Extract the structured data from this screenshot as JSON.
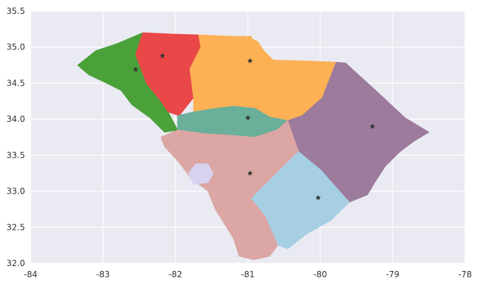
{
  "chart_data": {
    "type": "map",
    "title": "",
    "xlabel": "",
    "ylabel": "",
    "xlim": [
      -84,
      -78
    ],
    "ylim": [
      32.0,
      35.5
    ],
    "xticks": [
      -84,
      -83,
      -82,
      -81,
      -80,
      -79,
      -78
    ],
    "yticks": [
      32.0,
      32.5,
      33.0,
      33.5,
      34.0,
      34.5,
      35.0,
      35.5
    ],
    "xtick_labels": [
      "-84",
      "-83",
      "-82",
      "-81",
      "-80",
      "-79",
      "-78"
    ],
    "ytick_labels": [
      "32.0",
      "32.5",
      "33.0",
      "33.5",
      "34.0",
      "34.5",
      "35.0",
      "35.5"
    ],
    "grid": true,
    "background": "#eaeaf2",
    "marker_color": "#333333",
    "regions": [
      {
        "color": "#4aa13a",
        "outline": [
          [
            -83.35,
            34.75
          ],
          [
            -83.1,
            34.95
          ],
          [
            -82.8,
            35.05
          ],
          [
            -82.45,
            35.2
          ],
          [
            -82.55,
            34.9
          ],
          [
            -82.4,
            34.5
          ],
          [
            -82.2,
            34.25
          ],
          [
            -82.1,
            34.1
          ],
          [
            -81.97,
            33.85
          ],
          [
            -82.15,
            33.82
          ],
          [
            -82.35,
            34.02
          ],
          [
            -82.6,
            34.2
          ],
          [
            -82.75,
            34.4
          ],
          [
            -82.95,
            34.5
          ],
          [
            -83.2,
            34.62
          ]
        ],
        "centroid": [
          -82.55,
          34.69
        ]
      },
      {
        "color": "#e94748",
        "outline": [
          [
            -82.45,
            35.2
          ],
          [
            -82.0,
            35.18
          ],
          [
            -81.68,
            35.17
          ],
          [
            -81.65,
            35.0
          ],
          [
            -81.8,
            34.7
          ],
          [
            -81.75,
            34.3
          ],
          [
            -81.95,
            34.05
          ],
          [
            -82.1,
            34.1
          ],
          [
            -82.2,
            34.25
          ],
          [
            -82.4,
            34.5
          ],
          [
            -82.55,
            34.9
          ]
        ],
        "centroid": [
          -82.18,
          34.88
        ]
      },
      {
        "color": "#feb055",
        "outline": [
          [
            -81.68,
            35.17
          ],
          [
            -81.2,
            35.15
          ],
          [
            -80.95,
            35.15
          ],
          [
            -80.95,
            35.12
          ],
          [
            -80.87,
            35.08
          ],
          [
            -80.78,
            34.95
          ],
          [
            -80.65,
            34.82
          ],
          [
            -80.0,
            34.8
          ],
          [
            -79.78,
            34.79
          ],
          [
            -79.97,
            34.3
          ],
          [
            -80.25,
            34.05
          ],
          [
            -80.45,
            33.98
          ],
          [
            -80.7,
            34.03
          ],
          [
            -80.9,
            34.15
          ],
          [
            -81.2,
            34.18
          ],
          [
            -81.45,
            34.15
          ],
          [
            -81.75,
            34.1
          ],
          [
            -81.75,
            34.3
          ],
          [
            -81.8,
            34.7
          ],
          [
            -81.65,
            35.0
          ]
        ],
        "centroid": [
          -80.97,
          34.81
        ]
      },
      {
        "color": "#6aaf99",
        "outline": [
          [
            -81.97,
            34.05
          ],
          [
            -81.75,
            34.1
          ],
          [
            -81.45,
            34.15
          ],
          [
            -81.2,
            34.18
          ],
          [
            -80.9,
            34.15
          ],
          [
            -80.7,
            34.03
          ],
          [
            -80.45,
            33.98
          ],
          [
            -80.6,
            33.85
          ],
          [
            -80.9,
            33.75
          ],
          [
            -81.3,
            33.78
          ],
          [
            -81.6,
            33.8
          ],
          [
            -81.97,
            33.85
          ]
        ],
        "centroid": [
          -81.0,
          34.02
        ]
      },
      {
        "color": "#9c7b9c",
        "outline": [
          [
            -79.78,
            34.79
          ],
          [
            -79.65,
            34.78
          ],
          [
            -79.15,
            34.32
          ],
          [
            -78.83,
            34.02
          ],
          [
            -78.5,
            33.82
          ],
          [
            -78.7,
            33.7
          ],
          [
            -78.9,
            33.55
          ],
          [
            -79.1,
            33.35
          ],
          [
            -79.25,
            33.12
          ],
          [
            -79.35,
            32.95
          ],
          [
            -79.6,
            32.85
          ],
          [
            -80.0,
            33.3
          ],
          [
            -80.3,
            33.55
          ],
          [
            -80.45,
            33.98
          ],
          [
            -80.25,
            34.05
          ],
          [
            -79.97,
            34.3
          ]
        ],
        "centroid": [
          -79.28,
          33.9
        ]
      },
      {
        "color": "#dba6a3",
        "outline": [
          [
            -81.97,
            33.85
          ],
          [
            -81.6,
            33.8
          ],
          [
            -81.3,
            33.78
          ],
          [
            -80.9,
            33.75
          ],
          [
            -80.6,
            33.85
          ],
          [
            -80.45,
            33.98
          ],
          [
            -80.3,
            33.55
          ],
          [
            -80.55,
            33.3
          ],
          [
            -80.95,
            32.9
          ],
          [
            -80.75,
            32.65
          ],
          [
            -80.55,
            32.3
          ],
          [
            -80.7,
            32.1
          ],
          [
            -80.92,
            32.05
          ],
          [
            -81.12,
            32.1
          ],
          [
            -81.2,
            32.35
          ],
          [
            -81.45,
            32.75
          ],
          [
            -81.55,
            33.0
          ],
          [
            -81.8,
            33.2
          ],
          [
            -81.95,
            33.4
          ],
          [
            -82.15,
            33.62
          ],
          [
            -82.2,
            33.75
          ]
        ],
        "centroid": [
          -80.97,
          33.25
        ]
      },
      {
        "color": "#d8d2f0",
        "outline": [
          [
            -81.75,
            33.1
          ],
          [
            -81.55,
            33.12
          ],
          [
            -81.48,
            33.25
          ],
          [
            -81.55,
            33.38
          ],
          [
            -81.72,
            33.38
          ],
          [
            -81.82,
            33.25
          ]
        ],
        "centroid": null
      },
      {
        "color": "#a6cfe4",
        "outline": [
          [
            -80.3,
            33.55
          ],
          [
            -80.0,
            33.3
          ],
          [
            -79.6,
            32.85
          ],
          [
            -79.85,
            32.6
          ],
          [
            -80.2,
            32.4
          ],
          [
            -80.45,
            32.2
          ],
          [
            -80.58,
            32.25
          ],
          [
            -80.75,
            32.65
          ],
          [
            -80.95,
            32.9
          ],
          [
            -80.55,
            33.3
          ]
        ],
        "centroid": [
          -80.03,
          32.91
        ]
      }
    ]
  }
}
